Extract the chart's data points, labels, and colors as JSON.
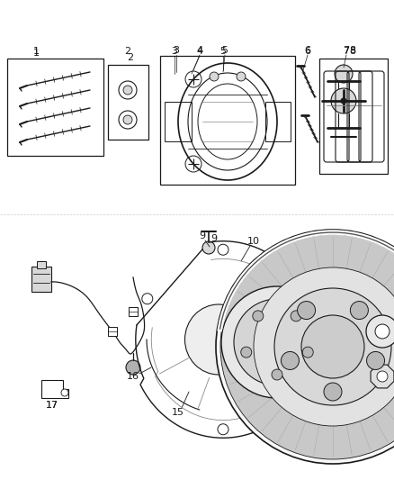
{
  "bg_color": "#ffffff",
  "fig_width": 4.38,
  "fig_height": 5.33,
  "dpi": 100,
  "lc": "#1a1a1a",
  "tc": "#1a1a1a",
  "gray_light": "#d8d8d8",
  "gray_mid": "#b0b0b0",
  "gray_dark": "#888888"
}
